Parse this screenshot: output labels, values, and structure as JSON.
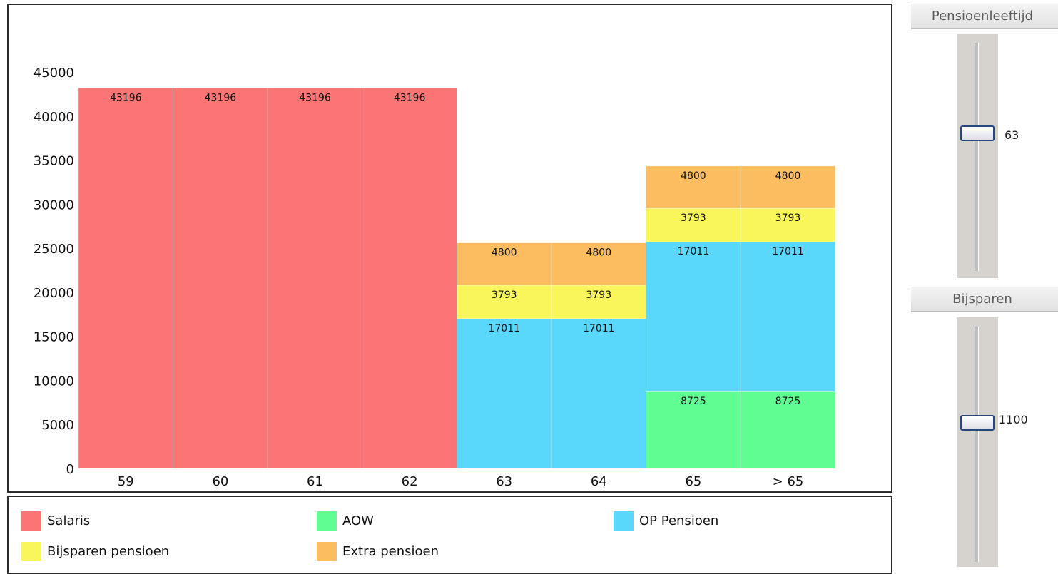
{
  "chart_data": {
    "type": "bar",
    "stacked": true,
    "categories": [
      "59",
      "60",
      "61",
      "62",
      "63",
      "64",
      "65",
      "> 65"
    ],
    "series": [
      {
        "name": "Salaris",
        "color": "#fb7575",
        "values": [
          43196,
          43196,
          43196,
          43196,
          0,
          0,
          0,
          0
        ]
      },
      {
        "name": "AOW",
        "color": "#5ffd92",
        "values": [
          0,
          0,
          0,
          0,
          0,
          0,
          8725,
          8725
        ]
      },
      {
        "name": "OP Pensioen",
        "color": "#5ad8fc",
        "values": [
          0,
          0,
          0,
          0,
          17011,
          17011,
          17011,
          17011
        ]
      },
      {
        "name": "Bijsparen pensioen",
        "color": "#f9f65b",
        "values": [
          0,
          0,
          0,
          0,
          3793,
          3793,
          3793,
          3793
        ]
      },
      {
        "name": "Extra pensioen",
        "color": "#fbbd5f",
        "values": [
          0,
          0,
          0,
          0,
          4800,
          4800,
          4800,
          4800
        ]
      }
    ],
    "y_ticks": [
      0,
      5000,
      10000,
      15000,
      20000,
      25000,
      30000,
      35000,
      40000,
      45000
    ],
    "ylim": [
      0,
      45000
    ],
    "grid": false,
    "legend": "bottom"
  },
  "legend": [
    {
      "label": "Salaris",
      "color": "#fb7575"
    },
    {
      "label": "AOW",
      "color": "#5ffd92"
    },
    {
      "label": "OP Pensioen",
      "color": "#5ad8fc"
    },
    {
      "label": "Bijsparen pensioen",
      "color": "#f9f65b"
    },
    {
      "label": "Extra pensioen",
      "color": "#fbbd5f"
    }
  ],
  "sidebar": {
    "pensioenleeftijd": {
      "title": "Pensioenleeftijd",
      "value": "63"
    },
    "bijsparen": {
      "title": "Bijsparen",
      "value": "1100"
    }
  }
}
